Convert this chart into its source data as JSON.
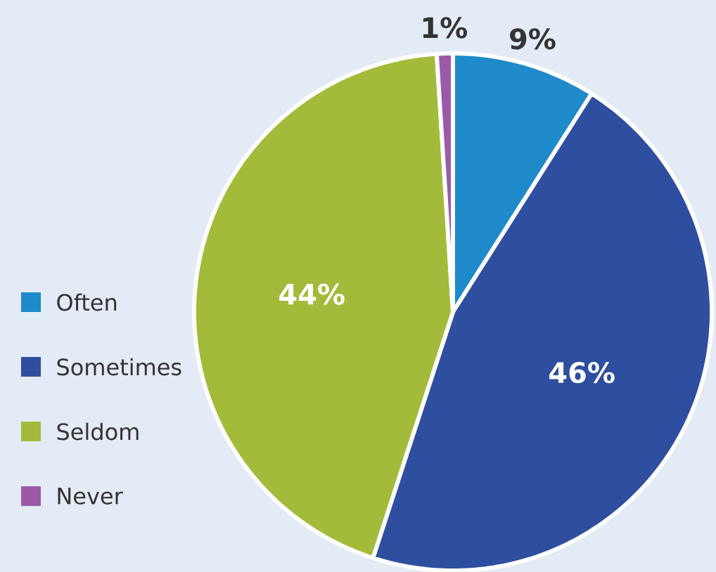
{
  "chart_data": {
    "type": "pie",
    "categories": [
      "Often",
      "Sometimes",
      "Seldom",
      "Never"
    ],
    "values": [
      9,
      46,
      44,
      1
    ],
    "colors": [
      "#1f8ac9",
      "#2e4ea0",
      "#a3bb3a",
      "#9b59a8"
    ],
    "value_labels": [
      "9%",
      "46%",
      "44%",
      "1%"
    ],
    "legend": "left"
  }
}
